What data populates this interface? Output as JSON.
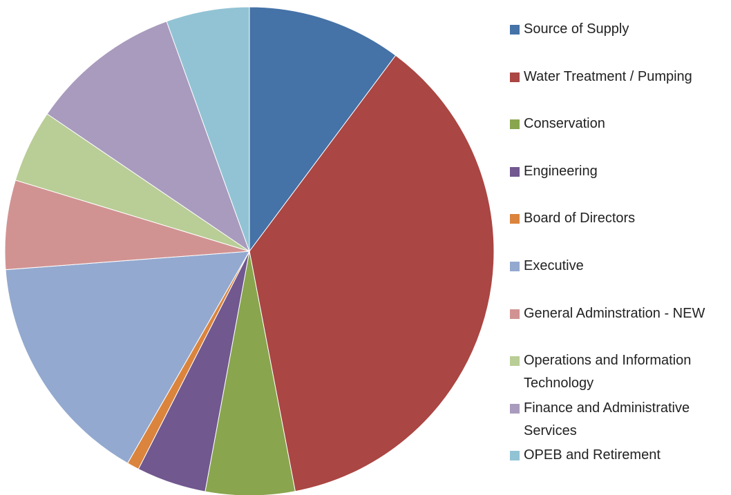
{
  "chart_data": {
    "type": "pie",
    "categories": [
      "Source of Supply",
      "Water Treatment / Pumping",
      "Conservation",
      "Engineering",
      "Board of Directors",
      "Executive",
      "General Adminstration - NEW",
      "Operations and Information Technology",
      "Finance and Administrative Services",
      "OPEB and Retirement"
    ],
    "values": [
      10.2,
      36.8,
      5.9,
      4.6,
      0.8,
      15.5,
      5.9,
      4.8,
      10.0,
      5.5
    ],
    "colors": [
      "#4572a7",
      "#aa4643",
      "#89a54e",
      "#71588f",
      "#db843d",
      "#93a9cf",
      "#d19392",
      "#b9cd96",
      "#a99bbd",
      "#92c3d4"
    ],
    "legend": "right"
  }
}
